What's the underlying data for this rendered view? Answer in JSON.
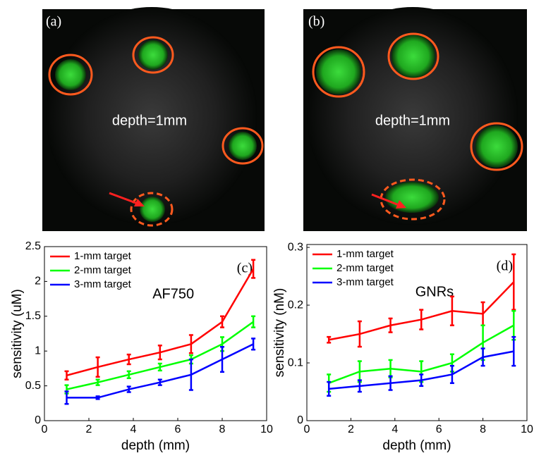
{
  "images": [
    {
      "label": "(a)",
      "text": "depth=1mm"
    },
    {
      "label": "(b)",
      "text": "depth=1mm"
    }
  ],
  "chart_data": [
    {
      "type": "line",
      "panel": "(c)",
      "annotation": "AF750",
      "xlabel": "depth (mm)",
      "ylabel": "sensitivity (uM)",
      "x": [
        1,
        2.4,
        3.8,
        5.2,
        6.6,
        8,
        9.4
      ],
      "xlim": [
        0,
        10
      ],
      "xticks": [
        0,
        2,
        4,
        6,
        8,
        10
      ],
      "ylim": [
        0,
        2.5
      ],
      "yticks": [
        0,
        0.5,
        1,
        1.5,
        2,
        2.5
      ],
      "legend": "upper left",
      "series": [
        {
          "name": "1-mm target",
          "color": "#ff0000",
          "values": [
            0.65,
            0.77,
            0.88,
            0.98,
            1.1,
            1.42,
            2.18
          ],
          "errors": [
            0.06,
            0.14,
            0.07,
            0.1,
            0.13,
            0.08,
            0.13
          ]
        },
        {
          "name": "2-mm target",
          "color": "#00ff00",
          "values": [
            0.45,
            0.55,
            0.66,
            0.77,
            0.88,
            1.1,
            1.42
          ],
          "errors": [
            0.06,
            0.04,
            0.05,
            0.05,
            0.06,
            0.1,
            0.08
          ]
        },
        {
          "name": "3-mm target",
          "color": "#0000ff",
          "values": [
            0.33,
            0.33,
            0.45,
            0.55,
            0.66,
            0.88,
            1.1
          ],
          "errors": [
            0.09,
            0.02,
            0.04,
            0.04,
            0.22,
            0.18,
            0.08
          ]
        }
      ]
    },
    {
      "type": "line",
      "panel": "(d)",
      "annotation": "GNRs",
      "xlabel": "depth (mm)",
      "ylabel": "sensitivity (nM)",
      "x": [
        1,
        2.4,
        3.8,
        5.2,
        6.6,
        8,
        9.4
      ],
      "xlim": [
        0,
        10
      ],
      "xticks": [
        0,
        2,
        4,
        6,
        8,
        10
      ],
      "ylim": [
        0,
        0.305
      ],
      "yticks": [
        0,
        0.1,
        0.2,
        0.3
      ],
      "legend": "upper left",
      "series": [
        {
          "name": "1-mm target",
          "color": "#ff0000",
          "values": [
            0.14,
            0.15,
            0.165,
            0.175,
            0.19,
            0.185,
            0.24
          ],
          "errors": [
            0.005,
            0.022,
            0.012,
            0.017,
            0.025,
            0.02,
            0.048
          ]
        },
        {
          "name": "2-mm target",
          "color": "#00ff00",
          "values": [
            0.065,
            0.085,
            0.09,
            0.085,
            0.1,
            0.135,
            0.165
          ],
          "errors": [
            0.015,
            0.018,
            0.015,
            0.018,
            0.015,
            0.03,
            0.025
          ]
        },
        {
          "name": "3-mm target",
          "color": "#0000ff",
          "values": [
            0.055,
            0.06,
            0.065,
            0.07,
            0.08,
            0.11,
            0.12
          ],
          "errors": [
            0.012,
            0.01,
            0.012,
            0.01,
            0.015,
            0.015,
            0.025
          ]
        }
      ]
    }
  ]
}
